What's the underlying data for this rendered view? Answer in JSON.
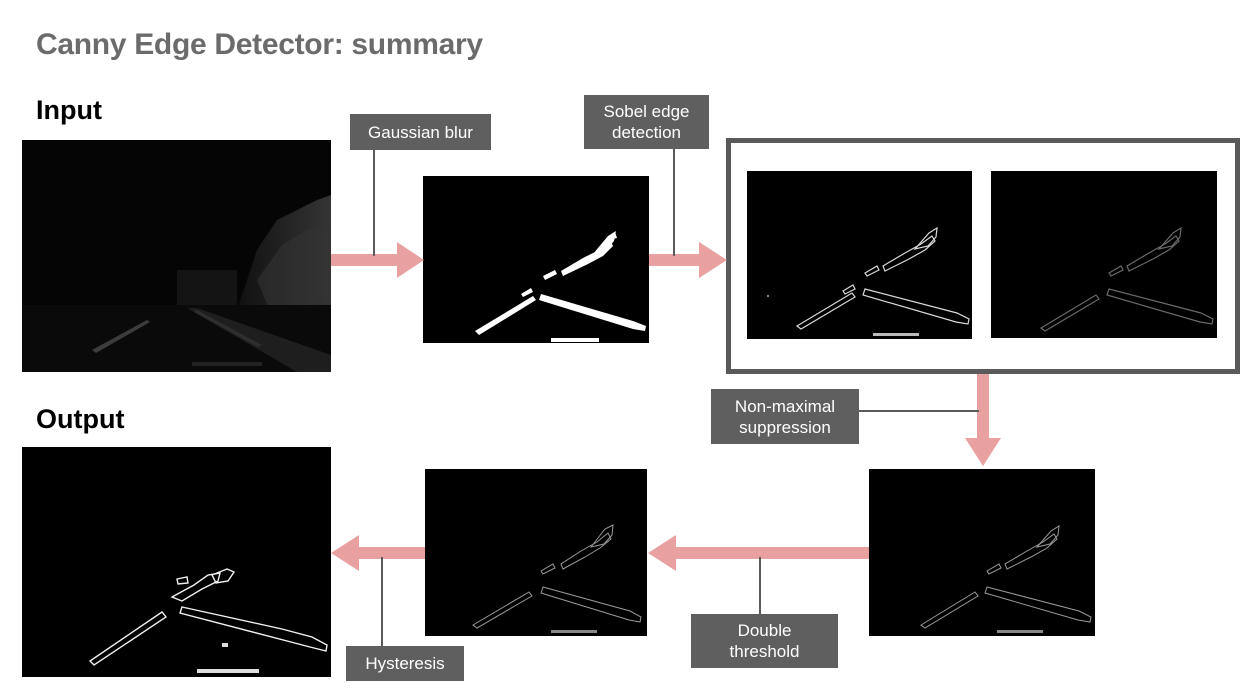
{
  "title": "Canny Edge Detector: summary",
  "input_label": "Input",
  "output_label": "Output",
  "steps": {
    "gaussian": "Gaussian blur",
    "sobel": "Sobel edge\ndetection",
    "nms": "Non-maximal\nsuppression",
    "double": "Double\nthreshold",
    "hysteresis": "Hysteresis"
  },
  "colors": {
    "arrow": "#e8a0a0",
    "label_bg": "#5f5f5f",
    "connector": "#5a5a5a",
    "title": "#6b6b6b"
  }
}
